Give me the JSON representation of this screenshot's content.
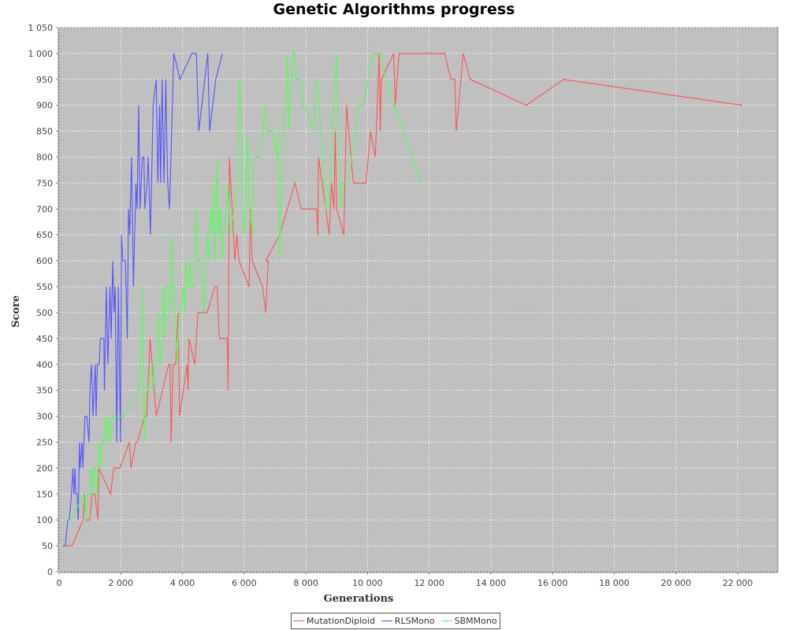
{
  "chart_data": {
    "type": "line",
    "title": "Genetic Algorithms progress",
    "xlabel": "Generations",
    "ylabel": "Score",
    "xlim": [
      0,
      23300
    ],
    "ylim": [
      0,
      1050
    ],
    "xticks": [
      0,
      2000,
      4000,
      6000,
      8000,
      10000,
      12000,
      14000,
      16000,
      18000,
      20000,
      22000
    ],
    "xtick_labels": [
      "0",
      "2 000",
      "4 000",
      "6 000",
      "8 000",
      "10 000",
      "12 000",
      "14 000",
      "16 000",
      "18 000",
      "20 000",
      "22 000"
    ],
    "yticks": [
      0,
      50,
      100,
      150,
      200,
      250,
      300,
      350,
      400,
      450,
      500,
      550,
      600,
      650,
      700,
      750,
      800,
      850,
      900,
      950,
      1000,
      1050
    ],
    "ytick_labels": [
      "0",
      "50",
      "100",
      "150",
      "200",
      "250",
      "300",
      "350",
      "400",
      "450",
      "500",
      "550",
      "600",
      "650",
      "700",
      "750",
      "800",
      "850",
      "900",
      "950",
      "1 000",
      "1 050"
    ],
    "grid": true,
    "legend_position": "bottom-center",
    "plot_background": "#c0c0c0",
    "series": [
      {
        "name": "MutationDiploid",
        "color": "#ff5555",
        "points": [
          [
            200,
            50
          ],
          [
            420,
            50
          ],
          [
            780,
            100
          ],
          [
            820,
            150
          ],
          [
            860,
            100
          ],
          [
            1000,
            100
          ],
          [
            1060,
            150
          ],
          [
            1160,
            150
          ],
          [
            1260,
            100
          ],
          [
            1290,
            200
          ],
          [
            1670,
            150
          ],
          [
            1770,
            200
          ],
          [
            1970,
            200
          ],
          [
            2280,
            250
          ],
          [
            2330,
            200
          ],
          [
            2490,
            250
          ],
          [
            2540,
            250
          ],
          [
            2770,
            300
          ],
          [
            2840,
            300
          ],
          [
            2950,
            450
          ],
          [
            3150,
            300
          ],
          [
            3550,
            400
          ],
          [
            3600,
            400
          ],
          [
            3630,
            250
          ],
          [
            3700,
            400
          ],
          [
            3780,
            400
          ],
          [
            3860,
            500
          ],
          [
            3910,
            300
          ],
          [
            4150,
            400
          ],
          [
            4180,
            350
          ],
          [
            4210,
            450
          ],
          [
            4400,
            400
          ],
          [
            4500,
            500
          ],
          [
            4700,
            500
          ],
          [
            4800,
            500
          ],
          [
            5050,
            550
          ],
          [
            5120,
            550
          ],
          [
            5200,
            450
          ],
          [
            5450,
            450
          ],
          [
            5480,
            350
          ],
          [
            5520,
            800
          ],
          [
            5700,
            600
          ],
          [
            5760,
            650
          ],
          [
            5830,
            600
          ],
          [
            6160,
            550
          ],
          [
            6200,
            700
          ],
          [
            6260,
            600
          ],
          [
            6600,
            550
          ],
          [
            6700,
            500
          ],
          [
            6780,
            600
          ],
          [
            6700,
            600
          ],
          [
            7150,
            650
          ],
          [
            7650,
            750
          ],
          [
            7850,
            700
          ],
          [
            8350,
            700
          ],
          [
            8390,
            650
          ],
          [
            8410,
            800
          ],
          [
            8760,
            650
          ],
          [
            8830,
            750
          ],
          [
            8910,
            700
          ],
          [
            8950,
            850
          ],
          [
            9000,
            700
          ],
          [
            9230,
            650
          ],
          [
            9320,
            900
          ],
          [
            9540,
            750
          ],
          [
            9950,
            750
          ],
          [
            10100,
            850
          ],
          [
            10250,
            800
          ],
          [
            10380,
            1000
          ],
          [
            10410,
            850
          ],
          [
            10450,
            950
          ],
          [
            10850,
            1000
          ],
          [
            10900,
            900
          ],
          [
            11020,
            1000
          ],
          [
            11050,
            1000
          ],
          [
            12500,
            1000
          ],
          [
            12700,
            950
          ],
          [
            12830,
            950
          ],
          [
            12880,
            850
          ],
          [
            13100,
            1000
          ],
          [
            13330,
            950
          ],
          [
            15150,
            900
          ],
          [
            16350,
            950
          ],
          [
            22150,
            900
          ]
        ]
      },
      {
        "name": "RLSMono",
        "color": "#5555ff",
        "points": [
          [
            120,
            50
          ],
          [
            200,
            50
          ],
          [
            280,
            100
          ],
          [
            330,
            100
          ],
          [
            400,
            150
          ],
          [
            450,
            200
          ],
          [
            480,
            150
          ],
          [
            520,
            200
          ],
          [
            540,
            150
          ],
          [
            580,
            150
          ],
          [
            620,
            100
          ],
          [
            660,
            250
          ],
          [
            680,
            200
          ],
          [
            740,
            250
          ],
          [
            770,
            200
          ],
          [
            840,
            300
          ],
          [
            900,
            300
          ],
          [
            970,
            250
          ],
          [
            1000,
            350
          ],
          [
            1050,
            400
          ],
          [
            1100,
            300
          ],
          [
            1170,
            400
          ],
          [
            1200,
            300
          ],
          [
            1240,
            400
          ],
          [
            1300,
            400
          ],
          [
            1340,
            450
          ],
          [
            1450,
            450
          ],
          [
            1470,
            350
          ],
          [
            1530,
            550
          ],
          [
            1580,
            400
          ],
          [
            1650,
            550
          ],
          [
            1690,
            450
          ],
          [
            1740,
            600
          ],
          [
            1780,
            500
          ],
          [
            1820,
            550
          ],
          [
            1870,
            250
          ],
          [
            1920,
            550
          ],
          [
            1990,
            250
          ],
          [
            2020,
            650
          ],
          [
            2070,
            600
          ],
          [
            2150,
            600
          ],
          [
            2210,
            450
          ],
          [
            2250,
            700
          ],
          [
            2290,
            650
          ],
          [
            2350,
            800
          ],
          [
            2410,
            550
          ],
          [
            2490,
            750
          ],
          [
            2530,
            700
          ],
          [
            2580,
            900
          ],
          [
            2620,
            700
          ],
          [
            2700,
            800
          ],
          [
            2750,
            800
          ],
          [
            2780,
            700
          ],
          [
            2850,
            750
          ],
          [
            2890,
            800
          ],
          [
            2960,
            650
          ],
          [
            3050,
            900
          ],
          [
            3150,
            950
          ],
          [
            3200,
            750
          ],
          [
            3260,
            900
          ],
          [
            3290,
            750
          ],
          [
            3340,
            950
          ],
          [
            3400,
            750
          ],
          [
            3460,
            950
          ],
          [
            3520,
            750
          ],
          [
            3580,
            700
          ],
          [
            3720,
            1000
          ],
          [
            3920,
            950
          ],
          [
            4300,
            1000
          ],
          [
            4450,
            1000
          ],
          [
            4530,
            850
          ],
          [
            4820,
            1000
          ],
          [
            4880,
            850
          ],
          [
            5080,
            950
          ],
          [
            5290,
            1000
          ]
        ]
      },
      {
        "name": "SBMMono",
        "color": "#55ff55",
        "points": [
          [
            250,
            100
          ],
          [
            300,
            100
          ],
          [
            350,
            100
          ],
          [
            400,
            100
          ],
          [
            800,
            150
          ],
          [
            860,
            100
          ],
          [
            930,
            150
          ],
          [
            1010,
            150
          ],
          [
            1050,
            200
          ],
          [
            1090,
            150
          ],
          [
            1120,
            200
          ],
          [
            1180,
            200
          ],
          [
            1240,
            150
          ],
          [
            1300,
            250
          ],
          [
            1340,
            200
          ],
          [
            1390,
            250
          ],
          [
            1450,
            250
          ],
          [
            1500,
            300
          ],
          [
            1560,
            250
          ],
          [
            1610,
            300
          ],
          [
            1680,
            250
          ],
          [
            1740,
            300
          ],
          [
            1860,
            300
          ],
          [
            2000,
            300
          ],
          [
            2100,
            300
          ],
          [
            2600,
            350
          ],
          [
            2700,
            550
          ],
          [
            2760,
            250
          ],
          [
            2830,
            350
          ],
          [
            2880,
            350
          ],
          [
            3000,
            400
          ],
          [
            3040,
            350
          ],
          [
            3090,
            400
          ],
          [
            3160,
            400
          ],
          [
            3210,
            500
          ],
          [
            3280,
            400
          ],
          [
            3340,
            450
          ],
          [
            3380,
            550
          ],
          [
            3420,
            450
          ],
          [
            3480,
            550
          ],
          [
            3550,
            550
          ],
          [
            3600,
            500
          ],
          [
            3650,
            650
          ],
          [
            3710,
            550
          ],
          [
            3760,
            500
          ],
          [
            3800,
            450
          ],
          [
            3840,
            400
          ],
          [
            3890,
            500
          ],
          [
            3960,
            500
          ],
          [
            4020,
            550
          ],
          [
            4060,
            500
          ],
          [
            4100,
            600
          ],
          [
            4160,
            550
          ],
          [
            4200,
            550
          ],
          [
            4240,
            600
          ],
          [
            4300,
            550
          ],
          [
            4340,
            550
          ],
          [
            4380,
            550
          ],
          [
            4440,
            700
          ],
          [
            4500,
            600
          ],
          [
            4560,
            600
          ],
          [
            4610,
            600
          ],
          [
            4660,
            550
          ],
          [
            4700,
            500
          ],
          [
            4760,
            600
          ],
          [
            4800,
            650
          ],
          [
            4850,
            600
          ],
          [
            4910,
            700
          ],
          [
            4960,
            650
          ],
          [
            5000,
            750
          ],
          [
            5050,
            600
          ],
          [
            5130,
            800
          ],
          [
            5160,
            650
          ],
          [
            5230,
            700
          ],
          [
            5280,
            600
          ],
          [
            5330,
            650
          ],
          [
            5430,
            700
          ],
          [
            5480,
            750
          ],
          [
            5540,
            650
          ],
          [
            5800,
            750
          ],
          [
            5850,
            950
          ],
          [
            5950,
            800
          ],
          [
            6000,
            650
          ],
          [
            6120,
            850
          ],
          [
            6160,
            700
          ],
          [
            6280,
            650
          ],
          [
            6320,
            800
          ],
          [
            6380,
            800
          ],
          [
            6420,
            800
          ],
          [
            6520,
            800
          ],
          [
            6600,
            850
          ],
          [
            6680,
            900
          ],
          [
            6740,
            850
          ],
          [
            6790,
            850
          ],
          [
            6840,
            850
          ],
          [
            6880,
            850
          ],
          [
            6920,
            850
          ],
          [
            7050,
            800
          ],
          [
            7090,
            850
          ],
          [
            7150,
            600
          ],
          [
            7250,
            850
          ],
          [
            7350,
            900
          ],
          [
            7400,
            1000
          ],
          [
            7460,
            850
          ],
          [
            7580,
            1000
          ],
          [
            7650,
            1000
          ],
          [
            7690,
            950
          ],
          [
            7760,
            950
          ],
          [
            7840,
            950
          ],
          [
            7900,
            900
          ],
          [
            7960,
            900
          ],
          [
            8280,
            850
          ],
          [
            8340,
            950
          ],
          [
            8380,
            950
          ],
          [
            8600,
            750
          ],
          [
            8640,
            700
          ],
          [
            8700,
            700
          ],
          [
            8780,
            750
          ],
          [
            8900,
            900
          ],
          [
            9000,
            1000
          ],
          [
            9050,
            850
          ],
          [
            9140,
            700
          ],
          [
            9200,
            750
          ],
          [
            9400,
            750
          ],
          [
            9480,
            800
          ],
          [
            9630,
            850
          ],
          [
            9700,
            900
          ],
          [
            9850,
            900
          ],
          [
            10200,
            1000
          ],
          [
            10300,
            1000
          ],
          [
            10450,
            1000
          ],
          [
            10580,
            950
          ],
          [
            11750,
            750
          ]
        ]
      }
    ]
  }
}
